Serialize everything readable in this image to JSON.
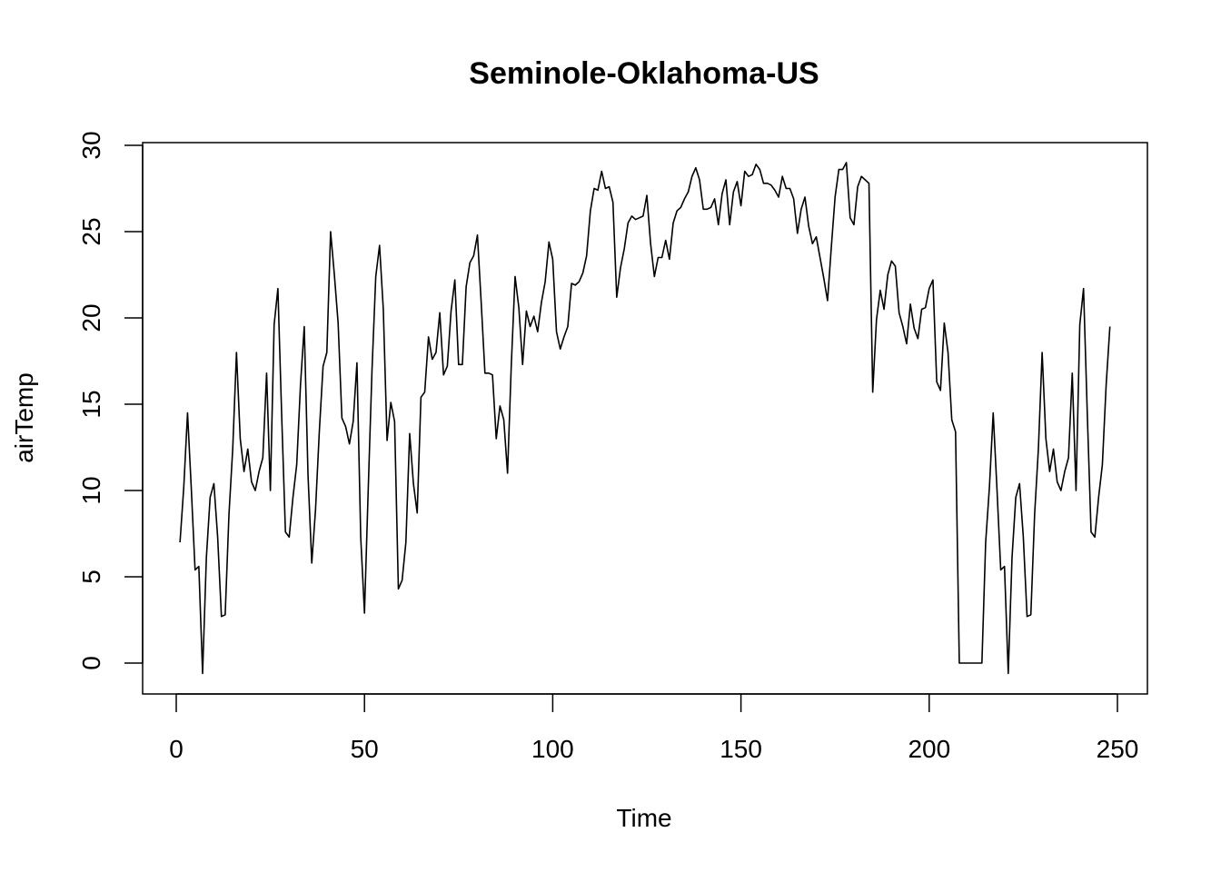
{
  "chart_data": {
    "type": "line",
    "title": "Seminole-Oklahoma-US",
    "xlabel": "Time",
    "ylabel": "airTemp",
    "xlim": [
      0,
      250
    ],
    "ylim": [
      0,
      30
    ],
    "xticks": [
      0,
      50,
      100,
      150,
      200,
      250
    ],
    "yticks": [
      0,
      5,
      10,
      15,
      20,
      25,
      30
    ],
    "grid": false,
    "series": [
      {
        "color": "#000000",
        "x": [
          1,
          2,
          3,
          4,
          5,
          6,
          7,
          8,
          9,
          10,
          11,
          12,
          13,
          14,
          15,
          16,
          17,
          18,
          19,
          20,
          21,
          22,
          23,
          24,
          25,
          26,
          27,
          28,
          29,
          30,
          31,
          32,
          33,
          34,
          35,
          36,
          37,
          38,
          39,
          40,
          41,
          42,
          43,
          44,
          45,
          46,
          47,
          48,
          49,
          50,
          51,
          52,
          53,
          54,
          55,
          56,
          57,
          58,
          59,
          60,
          61,
          62,
          63,
          64,
          65,
          66,
          67,
          68,
          69,
          70,
          71,
          72,
          73,
          74,
          75,
          76,
          77,
          78,
          79,
          80,
          81,
          82,
          83,
          84,
          85,
          86,
          87,
          88,
          89,
          90,
          91,
          92,
          93,
          94,
          95,
          96,
          97,
          98,
          99,
          100,
          101,
          102,
          103,
          104,
          105,
          106,
          107,
          108,
          109,
          110,
          111,
          112,
          113,
          114,
          115,
          116,
          117,
          118,
          119,
          120,
          121,
          122,
          123,
          124,
          125,
          126,
          127,
          128,
          129,
          130,
          131,
          132,
          133,
          134,
          135,
          136,
          137,
          138,
          139,
          140,
          141,
          142,
          143,
          144,
          145,
          146,
          147,
          148,
          149,
          150,
          151,
          152,
          153,
          154,
          155,
          156,
          157,
          158,
          159,
          160,
          161,
          162,
          163,
          164,
          165,
          166,
          167,
          168,
          169,
          170,
          171,
          172,
          173,
          174,
          175,
          176,
          177,
          178,
          179,
          180,
          181,
          182,
          183,
          184,
          185,
          186,
          187,
          188,
          189,
          190,
          191,
          192,
          193,
          194,
          195,
          196,
          197,
          198,
          199,
          200,
          201,
          202,
          203,
          204,
          205,
          206,
          207,
          208,
          209,
          210,
          211,
          212,
          213,
          214,
          215,
          216,
          217,
          218,
          219,
          220,
          221,
          222,
          223,
          224,
          225,
          226,
          227,
          228,
          229,
          230,
          231,
          232,
          233,
          234,
          235,
          236,
          237,
          238,
          239,
          240,
          241,
          242,
          243,
          244,
          245,
          246,
          247,
          248
        ],
        "y": [
          7.0,
          10.2,
          14.5,
          10.1,
          5.4,
          5.6,
          -0.6,
          6.1,
          9.6,
          10.4,
          7.3,
          2.7,
          2.8,
          8.6,
          12.4,
          18.0,
          13.0,
          11.1,
          12.4,
          10.5,
          10.0,
          11.1,
          11.9,
          16.8,
          10.0,
          19.6,
          21.7,
          14.4,
          7.6,
          7.3,
          9.6,
          11.5,
          16.1,
          19.5,
          10.9,
          5.8,
          8.9,
          13.4,
          17.2,
          18.0,
          25.0,
          22.5,
          19.7,
          14.2,
          13.7,
          12.7,
          14.0,
          17.4,
          7.3,
          2.9,
          10.1,
          17.0,
          22.4,
          24.2,
          20.5,
          12.9,
          15.1,
          14.0,
          4.3,
          4.8,
          7.0,
          13.3,
          10.4,
          8.7,
          15.4,
          15.7,
          18.9,
          17.6,
          18.0,
          20.3,
          16.7,
          17.2,
          20.4,
          22.2,
          17.3,
          17.3,
          21.8,
          23.2,
          23.6,
          24.8,
          20.9,
          16.8,
          16.8,
          16.7,
          13.0,
          14.9,
          14.1,
          11.0,
          17.3,
          22.4,
          20.6,
          17.3,
          20.4,
          19.5,
          20.1,
          19.2,
          20.9,
          22.1,
          24.4,
          23.4,
          19.2,
          18.2,
          18.9,
          19.5,
          22.0,
          21.9,
          22.1,
          22.6,
          23.6,
          26.2,
          27.5,
          27.4,
          28.5,
          27.5,
          27.6,
          26.7,
          21.2,
          22.9,
          24.0,
          25.5,
          25.9,
          25.7,
          25.8,
          25.9,
          27.1,
          24.3,
          22.4,
          23.5,
          23.5,
          24.5,
          23.4,
          25.5,
          26.2,
          26.4,
          26.9,
          27.3,
          28.2,
          28.7,
          28.0,
          26.3,
          26.3,
          26.4,
          26.9,
          25.4,
          27.2,
          28.0,
          25.4,
          27.3,
          27.9,
          26.5,
          28.5,
          28.2,
          28.3,
          28.9,
          28.6,
          27.8,
          27.8,
          27.7,
          27.4,
          27.0,
          28.2,
          27.5,
          27.5,
          26.9,
          24.9,
          26.3,
          27.0,
          25.3,
          24.3,
          24.7,
          23.5,
          22.3,
          21.0,
          24.1,
          27.0,
          28.6,
          28.6,
          29.0,
          25.8,
          25.4,
          27.6,
          28.2,
          28.0,
          27.8,
          15.7,
          19.9,
          21.6,
          20.5,
          22.5,
          23.3,
          23.0,
          20.3,
          19.5,
          18.5,
          20.8,
          19.4,
          18.8,
          20.5,
          20.6,
          21.7,
          22.2,
          16.3,
          15.8,
          19.7,
          18.0,
          14.1,
          13.4,
          0.0,
          0.0,
          0.0,
          0.0,
          0.0,
          0.0,
          0.0,
          7.0,
          10.2,
          14.5,
          10.1,
          5.4,
          5.6,
          -0.6,
          6.1,
          9.6,
          10.4,
          7.3,
          2.7,
          2.8,
          8.6,
          12.4,
          18.0,
          13.0,
          11.1,
          12.4,
          10.5,
          10.0,
          11.1,
          11.9,
          16.8,
          10.0,
          19.6,
          21.7,
          14.4,
          7.6,
          7.3,
          9.6,
          11.5,
          16.1,
          19.5
        ]
      }
    ]
  }
}
